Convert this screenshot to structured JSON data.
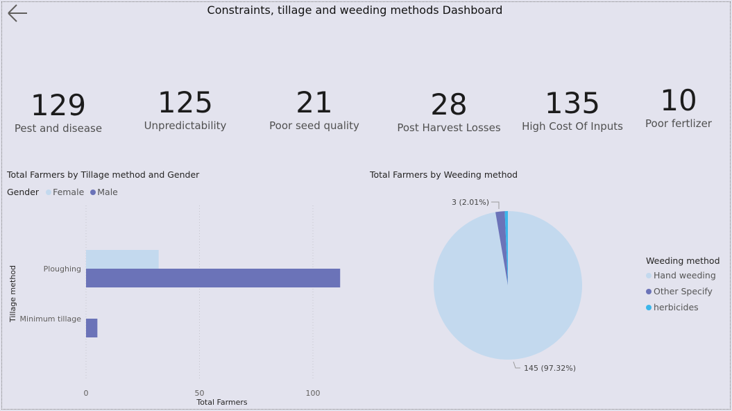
{
  "header": {
    "title": "Constraints, tillage and weeding methods Dashboard",
    "back_icon": "arrow-left-icon"
  },
  "kpis": [
    {
      "value": "129",
      "label": "Pest and disease"
    },
    {
      "value": "125",
      "label": "Unpredictability"
    },
    {
      "value": "21",
      "label": "Poor seed quality"
    },
    {
      "value": "28",
      "label": "Post Harvest Losses"
    },
    {
      "value": "135",
      "label": "High Cost Of Inputs"
    },
    {
      "value": "10",
      "label": "Poor fertlizer"
    }
  ],
  "bar_chart": {
    "title": "Total Farmers by Tillage method and Gender",
    "legend_title": "Gender",
    "colors": {
      "Female": "#c3d9ee",
      "Male": "#6b73b8"
    }
  },
  "pie_chart": {
    "title": "Total Farmers by Weeding method",
    "legend_title": "Weeding method",
    "labels": {
      "small": "3 (2.01%)",
      "large": "145 (97.32%)"
    },
    "colors": {
      "Hand weeding": "#c3d9ee",
      "Other Specify": "#6b73b8",
      "herbicides": "#3cb6ea"
    }
  },
  "chart_data": [
    {
      "type": "bar",
      "orientation": "horizontal",
      "title": "Total Farmers by Tillage method and Gender",
      "xlabel": "Total Farmers",
      "ylabel": "Tillage method",
      "categories": [
        "Ploughing",
        "Minimum tillage"
      ],
      "series": [
        {
          "name": "Female",
          "values": [
            32,
            0
          ]
        },
        {
          "name": "Male",
          "values": [
            112,
            5
          ]
        }
      ],
      "xlim": [
        0,
        112
      ],
      "xticks": [
        0,
        50,
        100
      ],
      "grid": true,
      "legend": "top-left"
    },
    {
      "type": "pie",
      "title": "Total Farmers by Weeding method",
      "categories": [
        "Hand weeding",
        "Other Specify",
        "herbicides"
      ],
      "values": [
        145,
        3,
        1
      ],
      "data_labels": [
        "145 (97.32%)",
        "3 (2.01%)",
        ""
      ],
      "legend": "right"
    }
  ]
}
